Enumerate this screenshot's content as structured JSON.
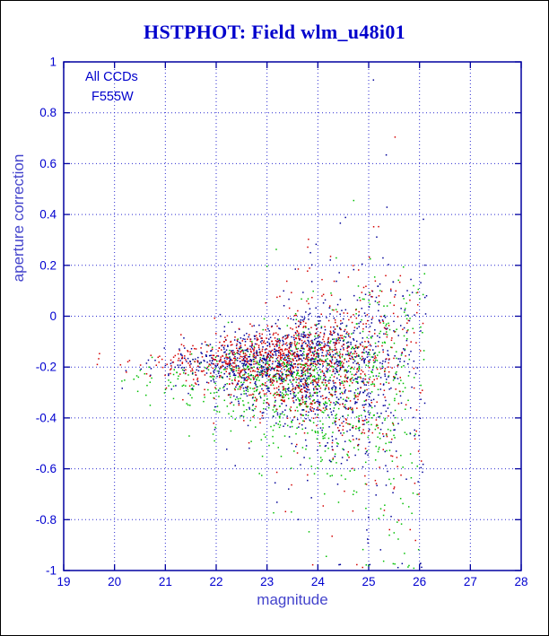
{
  "page": {
    "title": "HSTPHOT: Field wlm_u48i01"
  },
  "chart_data": {
    "type": "scatter",
    "title": "HSTPHOT: Field wlm_u48i01",
    "xlabel": "magnitude",
    "ylabel": "aperture correction",
    "xlim": [
      19,
      28
    ],
    "ylim": [
      -1,
      1
    ],
    "x_ticks": [
      19,
      20,
      21,
      22,
      23,
      24,
      25,
      26,
      27,
      28
    ],
    "y_ticks": [
      -1,
      -0.8,
      -0.6,
      -0.4,
      -0.2,
      0,
      0.2,
      0.4,
      0.6,
      0.8,
      1
    ],
    "grid": true,
    "legend_position": "none",
    "annotations": [
      "All CCDs",
      "F555W"
    ],
    "description": "HSTPHOT aperture-correction diagnostic scatter plot for field wlm_u48i01, filter F555W, all CCD chips. Dense cloud of red, dark-blue and green points centered near magnitude 23.5 and aperture correction -0.2; scatter widens strongly toward fainter magnitudes, reaching the full -1 to +1 range near magnitude 25.5, with a sharp faint-end cutoff near magnitude 26.1 and only sparse tight points brighter than magnitude 21.5. Green points sit slightly lower (about -0.25) and spread further downward than the red and blue points.",
    "series": [
      {
        "name": "chip-green",
        "color": "#00c000",
        "count": 1000,
        "seed": 37,
        "mag_mean": 23.9,
        "mag_sigma": 1.25,
        "mag_min": 19.9,
        "mag_max": 26.1,
        "y_center": -0.25,
        "sigma_base": 0.03,
        "sigma_amp": 0.021,
        "sigma_ref": 20,
        "sigma_scale": 2.1,
        "up_compress": 0.6,
        "outlier_prob": 0.09,
        "outlier_mult": 2.6
      },
      {
        "name": "chip-blue",
        "color": "#000099",
        "count": 1250,
        "seed": 23,
        "mag_mean": 23.8,
        "mag_sigma": 1.25,
        "mag_min": 19.6,
        "mag_max": 26.15,
        "y_center": -0.19,
        "sigma_base": 0.016,
        "sigma_amp": 0.018,
        "sigma_ref": 20,
        "sigma_scale": 2.1,
        "up_compress": 0.75,
        "outlier_prob": 0.08,
        "outlier_mult": 2.6
      },
      {
        "name": "chip-red",
        "color": "#d40000",
        "count": 1100,
        "seed": 11,
        "mag_mean": 23.7,
        "mag_sigma": 1.25,
        "mag_min": 19.6,
        "mag_max": 26.1,
        "y_center": -0.18,
        "sigma_base": 0.016,
        "sigma_amp": 0.018,
        "sigma_ref": 20,
        "sigma_scale": 2.1,
        "up_compress": 0.75,
        "outlier_prob": 0.08,
        "outlier_mult": 2.6
      }
    ],
    "style": {
      "title_color": "#0000cc",
      "axis_label_color": "#4444cc",
      "tick_label_color": "#0000d0",
      "frame_color": "#0000a0",
      "grid_color": "#2a2ad0",
      "annotation_color": "#0000cc",
      "point_size": 1.5,
      "background": "#ffffff"
    }
  }
}
